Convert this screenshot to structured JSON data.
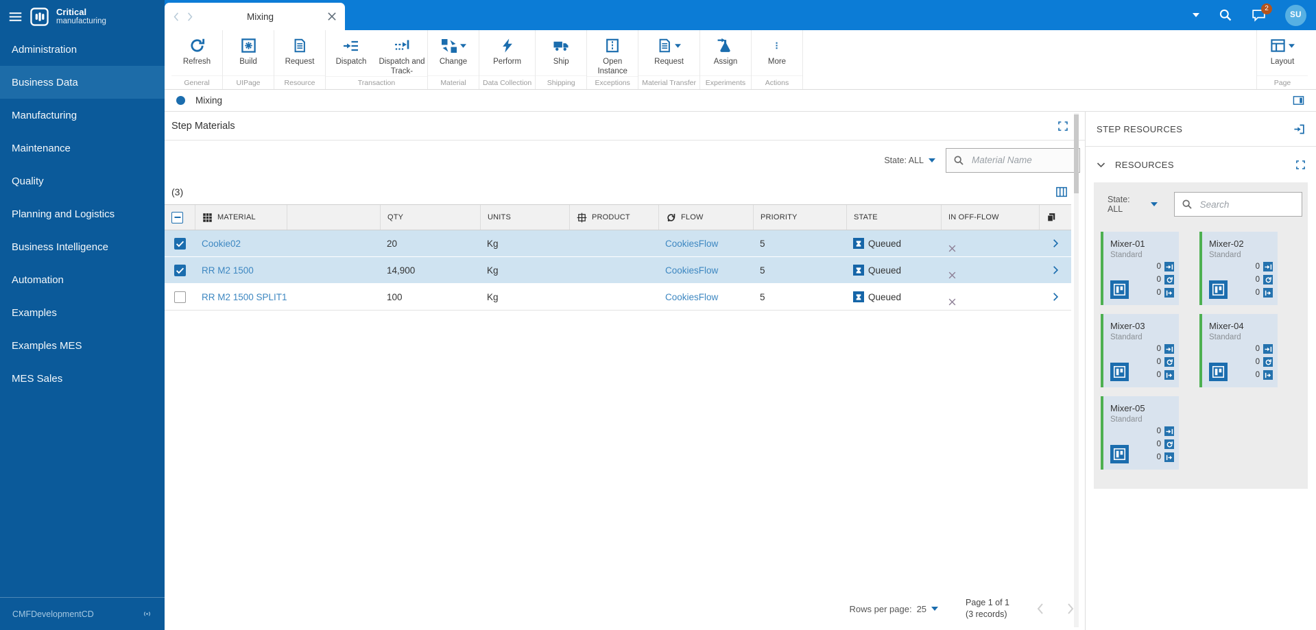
{
  "colors": {
    "topbar": "#0c7cd6",
    "sidebar": "#0b5a9a",
    "sidebar_selected": "#1d6ca8",
    "accent": "#1b6dae",
    "link": "#3d87c1",
    "selected_row": "#cfe3f1",
    "card_bg": "#d9e3ee",
    "card_border": "#4db051",
    "notification_badge": "#b4541e",
    "state_badge": "#1565a8"
  },
  "sidebar": {
    "brand": {
      "line1": "Critical",
      "line2": "manufacturing"
    },
    "items": [
      {
        "label": "Administration",
        "selected": false
      },
      {
        "label": "Business Data",
        "selected": true
      },
      {
        "label": "Manufacturing",
        "selected": false
      },
      {
        "label": "Maintenance",
        "selected": false
      },
      {
        "label": "Quality",
        "selected": false
      },
      {
        "label": "Planning and Logistics",
        "selected": false
      },
      {
        "label": "Business Intelligence",
        "selected": false
      },
      {
        "label": "Automation",
        "selected": false
      },
      {
        "label": "Examples",
        "selected": false
      },
      {
        "label": "Examples MES",
        "selected": false
      },
      {
        "label": "MES Sales",
        "selected": false
      }
    ],
    "footer": {
      "environment": "CMFDevelopmentCD"
    }
  },
  "topbar": {
    "notifications_badge": "2",
    "avatar_initials": "SU"
  },
  "tabbar": {
    "active_tab": "Mixing"
  },
  "ribbon": {
    "groups": [
      {
        "label": "General",
        "buttons": [
          {
            "label": "Refresh",
            "icon": "refresh-icon"
          }
        ]
      },
      {
        "label": "UIPage",
        "buttons": [
          {
            "label": "Build",
            "icon": "build-icon"
          }
        ]
      },
      {
        "label": "Resource",
        "buttons": [
          {
            "label": "Request",
            "icon": "document-icon"
          }
        ]
      },
      {
        "label": "Transaction",
        "buttons": [
          {
            "label": "Dispatch",
            "icon": "dispatch-icon"
          },
          {
            "label": "Dispatch and Track-",
            "icon": "dispatch-track-icon"
          }
        ]
      },
      {
        "label": "Material",
        "buttons": [
          {
            "label": "Change",
            "icon": "change-icon",
            "caret": true
          }
        ]
      },
      {
        "label": "Data Collection",
        "buttons": [
          {
            "label": "Perform",
            "icon": "lightning-icon"
          }
        ]
      },
      {
        "label": "Shipping",
        "buttons": [
          {
            "label": "Ship",
            "icon": "truck-icon"
          }
        ]
      },
      {
        "label": "Exceptions",
        "buttons": [
          {
            "label": "Open Instance",
            "icon": "open-instance-icon"
          }
        ]
      },
      {
        "label": "Material Transfer",
        "buttons": [
          {
            "label": "Request",
            "icon": "document-icon",
            "caret": true
          }
        ]
      },
      {
        "label": "Experiments",
        "buttons": [
          {
            "label": "Assign",
            "icon": "flask-icon"
          }
        ]
      },
      {
        "label": "Actions",
        "buttons": [
          {
            "label": "More",
            "icon": "more-icon"
          }
        ]
      }
    ],
    "page_group": {
      "label": "Page",
      "button_label": "Layout"
    }
  },
  "page": {
    "title": "Mixing",
    "section_title": "Step Materials"
  },
  "filters": {
    "state_label": "State: ALL",
    "material_placeholder": "Material Name"
  },
  "grid": {
    "count": "(3)",
    "columns": [
      {
        "label": "",
        "icon": "select-all-checkbox"
      },
      {
        "label": "MATERIAL",
        "icon": "material-icon"
      },
      {
        "label": ""
      },
      {
        "label": "QTY"
      },
      {
        "label": "UNITS"
      },
      {
        "label": "PRODUCT",
        "icon": "product-icon"
      },
      {
        "label": "FLOW",
        "icon": "flow-icon"
      },
      {
        "label": "PRIORITY"
      },
      {
        "label": "STATE"
      },
      {
        "label": "IN OFF-FLOW"
      },
      {
        "label": "",
        "icon": "copy-icon"
      }
    ],
    "rows": [
      {
        "material": "Cookie02",
        "qty": "20",
        "units": "Kg",
        "product": "",
        "flow": "CookiesFlow",
        "priority": "5",
        "state": "Queued",
        "checked": true,
        "selected": true
      },
      {
        "material": "RR M2 1500",
        "qty": "14,900",
        "units": "Kg",
        "product": "",
        "flow": "CookiesFlow",
        "priority": "5",
        "state": "Queued",
        "checked": true,
        "selected": true
      },
      {
        "material": "RR M2 1500 SPLIT1",
        "qty": "100",
        "units": "Kg",
        "product": "",
        "flow": "CookiesFlow",
        "priority": "5",
        "state": "Queued",
        "checked": false,
        "selected": false
      }
    ]
  },
  "pagination": {
    "rows_per_page_label": "Rows per page:",
    "rows_per_page_value": "25",
    "page_info": "Page 1 of 1",
    "records_info": "(3 records)"
  },
  "resources_panel": {
    "title": "STEP RESOURCES",
    "section_title": "RESOURCES",
    "state_label": "State: ALL",
    "search_placeholder": "Search",
    "cards": [
      {
        "name": "Mixer-01",
        "type": "Standard",
        "counts": [
          "0",
          "0",
          "0"
        ]
      },
      {
        "name": "Mixer-02",
        "type": "Standard",
        "counts": [
          "0",
          "0",
          "0"
        ]
      },
      {
        "name": "Mixer-03",
        "type": "Standard",
        "counts": [
          "0",
          "0",
          "0"
        ]
      },
      {
        "name": "Mixer-04",
        "type": "Standard",
        "counts": [
          "0",
          "0",
          "0"
        ]
      },
      {
        "name": "Mixer-05",
        "type": "Standard",
        "counts": [
          "0",
          "0",
          "0"
        ]
      }
    ]
  }
}
